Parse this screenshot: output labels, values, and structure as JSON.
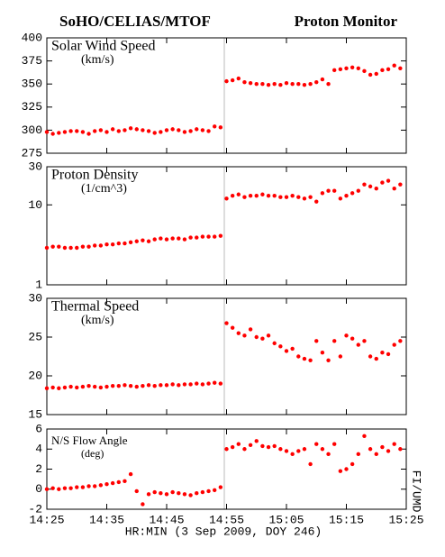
{
  "header": {
    "left": "SoHO/CELIAS/MTOF",
    "right": "Proton Monitor",
    "credit": "FI/UMD"
  },
  "time_axis": {
    "label": "HR:MIN (3 Sep 2009, DOY 246)",
    "xlim": [
      0,
      60
    ],
    "xticks": [
      {
        "value": 0,
        "label": "14:25"
      },
      {
        "value": 10,
        "label": "14:35"
      },
      {
        "value": 20,
        "label": "14:45"
      },
      {
        "value": 30,
        "label": "14:55"
      },
      {
        "value": 40,
        "label": "15:05"
      },
      {
        "value": 50,
        "label": "15:15"
      },
      {
        "value": 60,
        "label": "15:25"
      }
    ],
    "x": [
      0,
      1,
      2,
      3,
      4,
      5,
      6,
      7,
      8,
      9,
      10,
      11,
      12,
      13,
      14,
      15,
      16,
      17,
      18,
      19,
      20,
      21,
      22,
      23,
      24,
      25,
      26,
      27,
      28,
      29,
      30,
      31,
      32,
      33,
      34,
      35,
      36,
      37,
      38,
      39,
      40,
      41,
      42,
      43,
      44,
      45,
      46,
      47,
      48,
      49,
      50,
      51,
      52,
      53,
      54,
      55,
      56,
      57,
      58,
      59
    ]
  },
  "chart_data": [
    {
      "type": "scatter",
      "title": "Solar Wind Speed",
      "subtitle": "(km/s)",
      "color": "#ff0000",
      "scale": "linear",
      "ylim": [
        275,
        400
      ],
      "yticks": [
        275,
        300,
        325,
        350,
        375,
        400
      ],
      "values": [
        298,
        296,
        297,
        298,
        299,
        299,
        298,
        296,
        299,
        300,
        298,
        301,
        299,
        300,
        302,
        301,
        300,
        299,
        297,
        298,
        300,
        301,
        300,
        298,
        299,
        301,
        300,
        299,
        304,
        303,
        353,
        354,
        356,
        352,
        351,
        350,
        350,
        349,
        350,
        349,
        351,
        350,
        350,
        349,
        350,
        352,
        355,
        350,
        365,
        366,
        367,
        368,
        367,
        364,
        360,
        361,
        365,
        366,
        370,
        367
      ]
    },
    {
      "type": "scatter",
      "title": "Proton Density",
      "subtitle": "(1/cm^3)",
      "color": "#ff0000",
      "scale": "log",
      "ylim": [
        1,
        30
      ],
      "yticks": [
        1,
        10,
        30
      ],
      "values": [
        2.9,
        3.0,
        3.0,
        2.9,
        2.9,
        2.9,
        3.0,
        3.0,
        3.1,
        3.1,
        3.2,
        3.2,
        3.3,
        3.3,
        3.4,
        3.5,
        3.6,
        3.5,
        3.7,
        3.8,
        3.7,
        3.8,
        3.8,
        3.7,
        3.9,
        3.9,
        4.0,
        4.0,
        4.0,
        4.1,
        12,
        13,
        13.5,
        12.5,
        13,
        13,
        13.5,
        13,
        13,
        12.5,
        12.5,
        13,
        12.5,
        12,
        12.5,
        11,
        14,
        15,
        15,
        12,
        13,
        14,
        15,
        18,
        17,
        16,
        19,
        20,
        16,
        18
      ]
    },
    {
      "type": "scatter",
      "title": "Thermal Speed",
      "subtitle": "(km/s)",
      "color": "#ff0000",
      "scale": "linear",
      "ylim": [
        15,
        30
      ],
      "yticks": [
        15,
        20,
        25,
        30
      ],
      "values": [
        18.4,
        18.5,
        18.4,
        18.5,
        18.6,
        18.5,
        18.6,
        18.7,
        18.6,
        18.5,
        18.6,
        18.7,
        18.7,
        18.8,
        18.7,
        18.6,
        18.7,
        18.8,
        18.7,
        18.8,
        18.8,
        18.9,
        18.8,
        18.9,
        18.9,
        19.0,
        18.9,
        19.0,
        19.1,
        19.0,
        26.8,
        26.2,
        25.5,
        25.2,
        26.0,
        25.0,
        24.8,
        25.2,
        24.2,
        23.8,
        23.2,
        23.5,
        22.5,
        22.2,
        22.0,
        24.5,
        23.0,
        22.0,
        24.5,
        22.5,
        25.2,
        24.8,
        24.0,
        24.5,
        22.5,
        22.2,
        23.0,
        22.8,
        24.0,
        24.5
      ]
    },
    {
      "type": "scatter",
      "title": "N/S Flow Angle",
      "subtitle": "(deg)",
      "color": "#ff0000",
      "scale": "linear",
      "ylim": [
        -2,
        6
      ],
      "yticks": [
        -2,
        0,
        2,
        4,
        6
      ],
      "values": [
        0,
        0.1,
        0,
        0.1,
        0.1,
        0.2,
        0.2,
        0.3,
        0.3,
        0.4,
        0.5,
        0.6,
        0.7,
        0.8,
        1.5,
        -0.2,
        -1.5,
        -0.5,
        -0.3,
        -0.4,
        -0.5,
        -0.3,
        -0.4,
        -0.5,
        -0.6,
        -0.4,
        -0.3,
        -0.2,
        -0.1,
        0.2,
        4.0,
        4.2,
        4.5,
        4.0,
        4.4,
        4.8,
        4.3,
        4.2,
        4.3,
        4.0,
        3.8,
        3.5,
        3.8,
        4.0,
        2.5,
        4.5,
        4.0,
        3.5,
        4.5,
        1.8,
        2.0,
        2.5,
        3.5,
        5.3,
        4.0,
        3.5,
        4.2,
        3.8,
        4.5,
        4.0
      ]
    }
  ]
}
